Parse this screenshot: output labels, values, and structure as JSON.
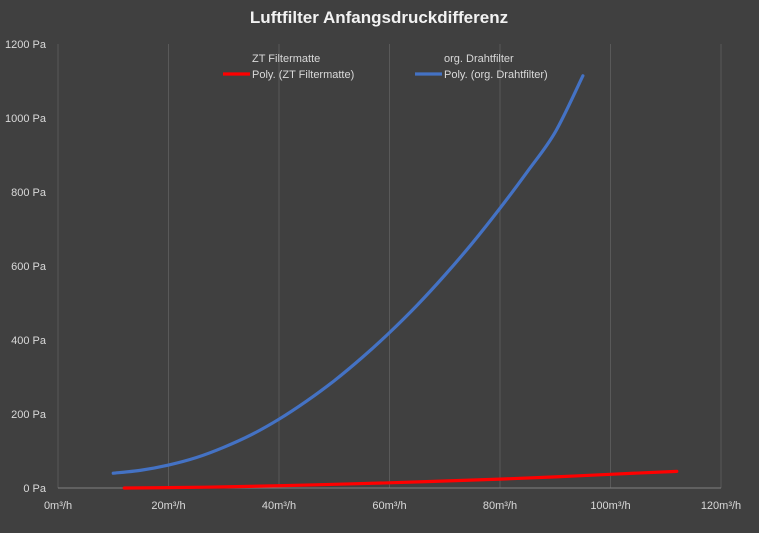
{
  "chart_data": {
    "type": "line",
    "title": "Luftfilter Anfangsdruckdifferenz",
    "xlabel": "",
    "ylabel": "",
    "xlim": [
      0,
      120
    ],
    "ylim": [
      0,
      1200
    ],
    "x_ticks": [
      "0m³/h",
      "20m³/h",
      "40m³/h",
      "60m³/h",
      "80m³/h",
      "100m³/h",
      "120m³/h"
    ],
    "y_ticks": [
      "0 Pa",
      "200 Pa",
      "400 Pa",
      "600 Pa",
      "800 Pa",
      "1000 Pa",
      "1200 Pa"
    ],
    "grid": "vertical",
    "legend_position": "top",
    "legend": [
      {
        "label": "ZT Filtermatte",
        "marker": "none"
      },
      {
        "label": "org. Drahtfilter",
        "marker": "none"
      },
      {
        "label": "Poly. (ZT Filtermatte)",
        "color": "#ff0000"
      },
      {
        "label": "Poly. (org. Drahtfilter)",
        "color": "#4472c4"
      }
    ],
    "series": [
      {
        "name": "Poly. (ZT Filtermatte)",
        "color": "#ff0000",
        "x": [
          12,
          20,
          30,
          40,
          50,
          60,
          70,
          80,
          90,
          100,
          112
        ],
        "y": [
          0,
          1,
          3,
          6,
          10,
          14,
          19,
          24,
          30,
          37,
          45
        ]
      },
      {
        "name": "Poly. (org. Drahtfilter)",
        "color": "#4472c4",
        "x": [
          10,
          15,
          20,
          25,
          30,
          35,
          40,
          45,
          50,
          55,
          60,
          65,
          70,
          75,
          80,
          85,
          90,
          95
        ],
        "y": [
          40,
          48,
          62,
          82,
          110,
          144,
          186,
          235,
          290,
          352,
          420,
          494,
          575,
          662,
          756,
          856,
          962,
          1114
        ]
      }
    ]
  }
}
